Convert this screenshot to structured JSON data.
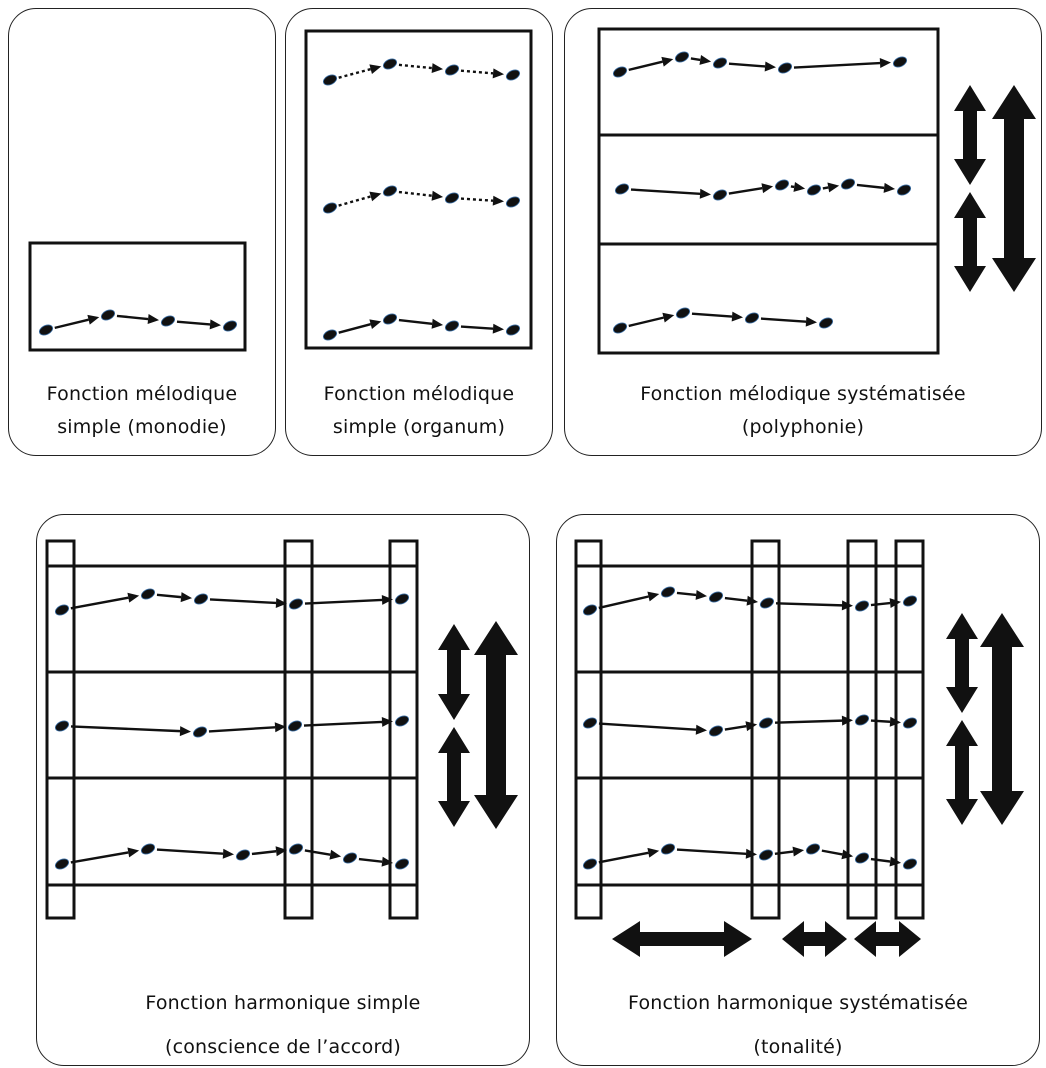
{
  "panels": [
    {
      "caption1": "Fonction mélodique",
      "caption2": "simple (monodie)"
    },
    {
      "caption1": "Fonction mélodique",
      "caption2": "simple (organum)"
    },
    {
      "caption1": "Fonction mélodique systématisée",
      "caption2": "(polyphonie)"
    },
    {
      "caption1": "Fonction harmonique simple",
      "caption2": "(conscience de l’accord)"
    },
    {
      "caption1": "Fonction harmonique systématisée",
      "caption2": "(tonalité)"
    }
  ],
  "colors": {
    "ink": "#111111",
    "panel_border": "#222222",
    "note_highlight": "#3a6ea5"
  }
}
